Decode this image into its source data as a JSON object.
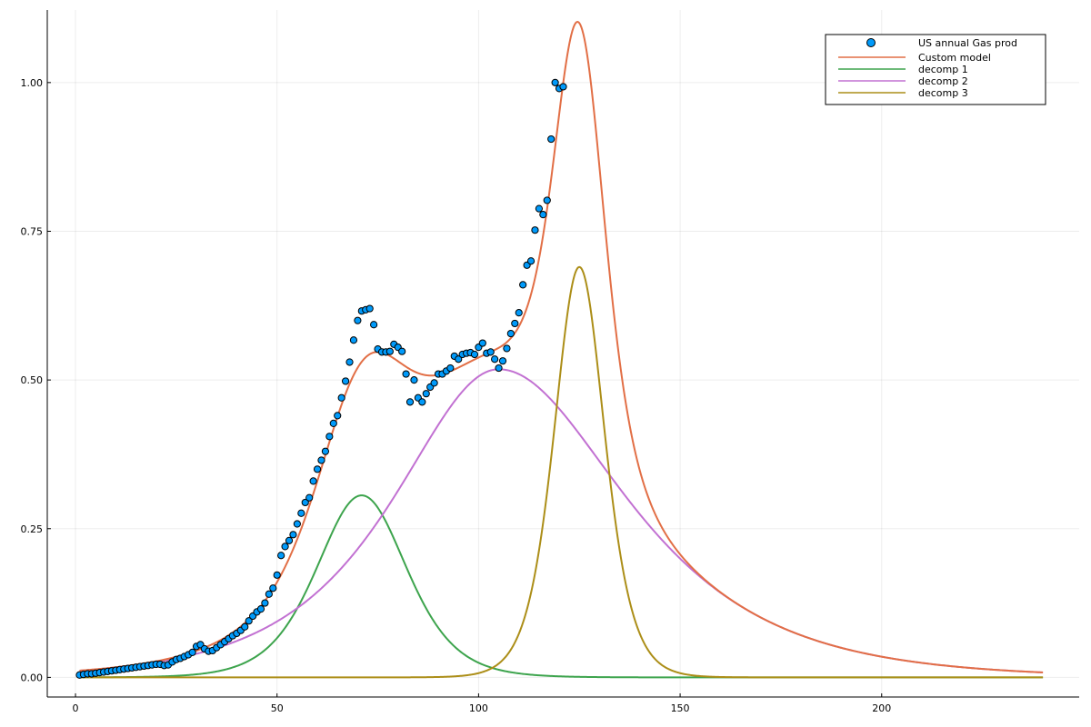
{
  "chart_data": {
    "type": "line",
    "title": "",
    "xlabel": "",
    "ylabel": "",
    "xlim": [
      -7,
      249
    ],
    "ylim": [
      -0.033,
      1.122
    ],
    "x_ticks": [
      0,
      50,
      100,
      150,
      200
    ],
    "x_tick_labels": [
      "0",
      "50",
      "100",
      "150",
      "200"
    ],
    "y_ticks": [
      0.0,
      0.25,
      0.5,
      0.75,
      1.0
    ],
    "y_tick_labels": [
      "0.00",
      "0.25",
      "0.50",
      "0.75",
      "1.00"
    ],
    "grid": true,
    "legend_position": "top-right",
    "scatter_series": {
      "name": "US annual Gas prod",
      "color": "#009AFA",
      "x": [
        1,
        2,
        3,
        4,
        5,
        6,
        7,
        8,
        9,
        10,
        11,
        12,
        13,
        14,
        15,
        16,
        17,
        18,
        19,
        20,
        21,
        22,
        23,
        24,
        25,
        26,
        27,
        28,
        29,
        30,
        31,
        32,
        33,
        34,
        35,
        36,
        37,
        38,
        39,
        40,
        41,
        42,
        43,
        44,
        45,
        46,
        47,
        48,
        49,
        50,
        51,
        52,
        53,
        54,
        55,
        56,
        57,
        58,
        59,
        60,
        61,
        62,
        63,
        64,
        65,
        66,
        67,
        68,
        69,
        70,
        71,
        72,
        73,
        74,
        75,
        76,
        77,
        78,
        79,
        80,
        81,
        82,
        83,
        84,
        85,
        86,
        87,
        88,
        89,
        90,
        91,
        92,
        93,
        94,
        95,
        96,
        97,
        98,
        99,
        100,
        101,
        102,
        103,
        104,
        105,
        106,
        107,
        108,
        109,
        110,
        111,
        112,
        113,
        114,
        115,
        116,
        117,
        118,
        119,
        120,
        121
      ],
      "y": [
        0.004,
        0.005,
        0.006,
        0.006,
        0.007,
        0.008,
        0.009,
        0.01,
        0.011,
        0.012,
        0.013,
        0.014,
        0.015,
        0.016,
        0.017,
        0.018,
        0.019,
        0.02,
        0.021,
        0.022,
        0.022,
        0.02,
        0.021,
        0.026,
        0.03,
        0.032,
        0.035,
        0.038,
        0.042,
        0.052,
        0.055,
        0.048,
        0.044,
        0.045,
        0.05,
        0.055,
        0.06,
        0.065,
        0.07,
        0.074,
        0.079,
        0.085,
        0.095,
        0.103,
        0.11,
        0.115,
        0.125,
        0.14,
        0.15,
        0.172,
        0.205,
        0.22,
        0.23,
        0.24,
        0.258,
        0.276,
        0.294,
        0.302,
        0.33,
        0.35,
        0.365,
        0.38,
        0.405,
        0.427,
        0.44,
        0.47,
        0.498,
        0.53,
        0.567,
        0.6,
        0.616,
        0.618,
        0.62,
        0.593,
        0.552,
        0.547,
        0.547,
        0.548,
        0.56,
        0.555,
        0.548,
        0.51,
        0.463,
        0.5,
        0.47,
        0.463,
        0.477,
        0.488,
        0.495,
        0.51,
        0.51,
        0.515,
        0.52,
        0.54,
        0.535,
        0.543,
        0.545,
        0.546,
        0.543,
        0.555,
        0.562,
        0.545,
        0.547,
        0.535,
        0.52,
        0.532,
        0.553,
        0.578,
        0.595,
        0.613,
        0.66,
        0.693,
        0.7,
        0.752,
        0.788,
        0.778,
        0.802,
        0.905,
        1.0,
        0.99,
        0.993
      ]
    },
    "series": [
      {
        "name": "Custom model",
        "color": "#E26F46"
      },
      {
        "name": "decomp 1",
        "color": "#3DA44D"
      },
      {
        "name": "decomp 2",
        "color": "#C271D2"
      },
      {
        "name": "decomp 3",
        "color": "#AC8E18"
      }
    ],
    "line_x_range": [
      1,
      240
    ]
  }
}
